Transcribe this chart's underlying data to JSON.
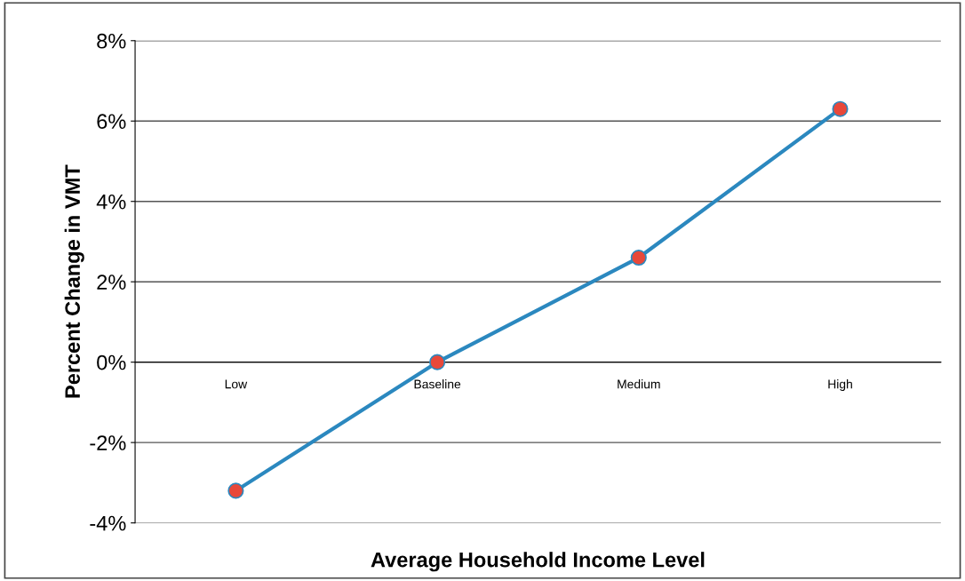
{
  "chart_data": {
    "type": "line",
    "xlabel": "Average Household Income Level",
    "ylabel": "Percent Change in VMT",
    "categories": [
      "Low",
      "Baseline",
      "Medium",
      "High"
    ],
    "series": [
      {
        "color": "#2b88bf",
        "colors": [
          "#e8483a",
          "#e8483a",
          "#e8483a",
          "#e8483a"
        ],
        "values": [
          -3.2,
          0,
          2.6,
          6.3
        ]
      }
    ],
    "ylim": [
      -4,
      8
    ],
    "yticks": [
      {
        "value": -4,
        "label": "-4%"
      },
      {
        "value": -2,
        "label": "-2%"
      },
      {
        "value": 0,
        "label": "0%"
      },
      {
        "value": 2,
        "label": "2%"
      },
      {
        "value": 4,
        "label": "4%"
      },
      {
        "value": 6,
        "label": "6%"
      },
      {
        "value": 8,
        "label": "8%"
      }
    ],
    "grid": "y",
    "legend": false,
    "marker": "circle",
    "line_style": "solid"
  }
}
